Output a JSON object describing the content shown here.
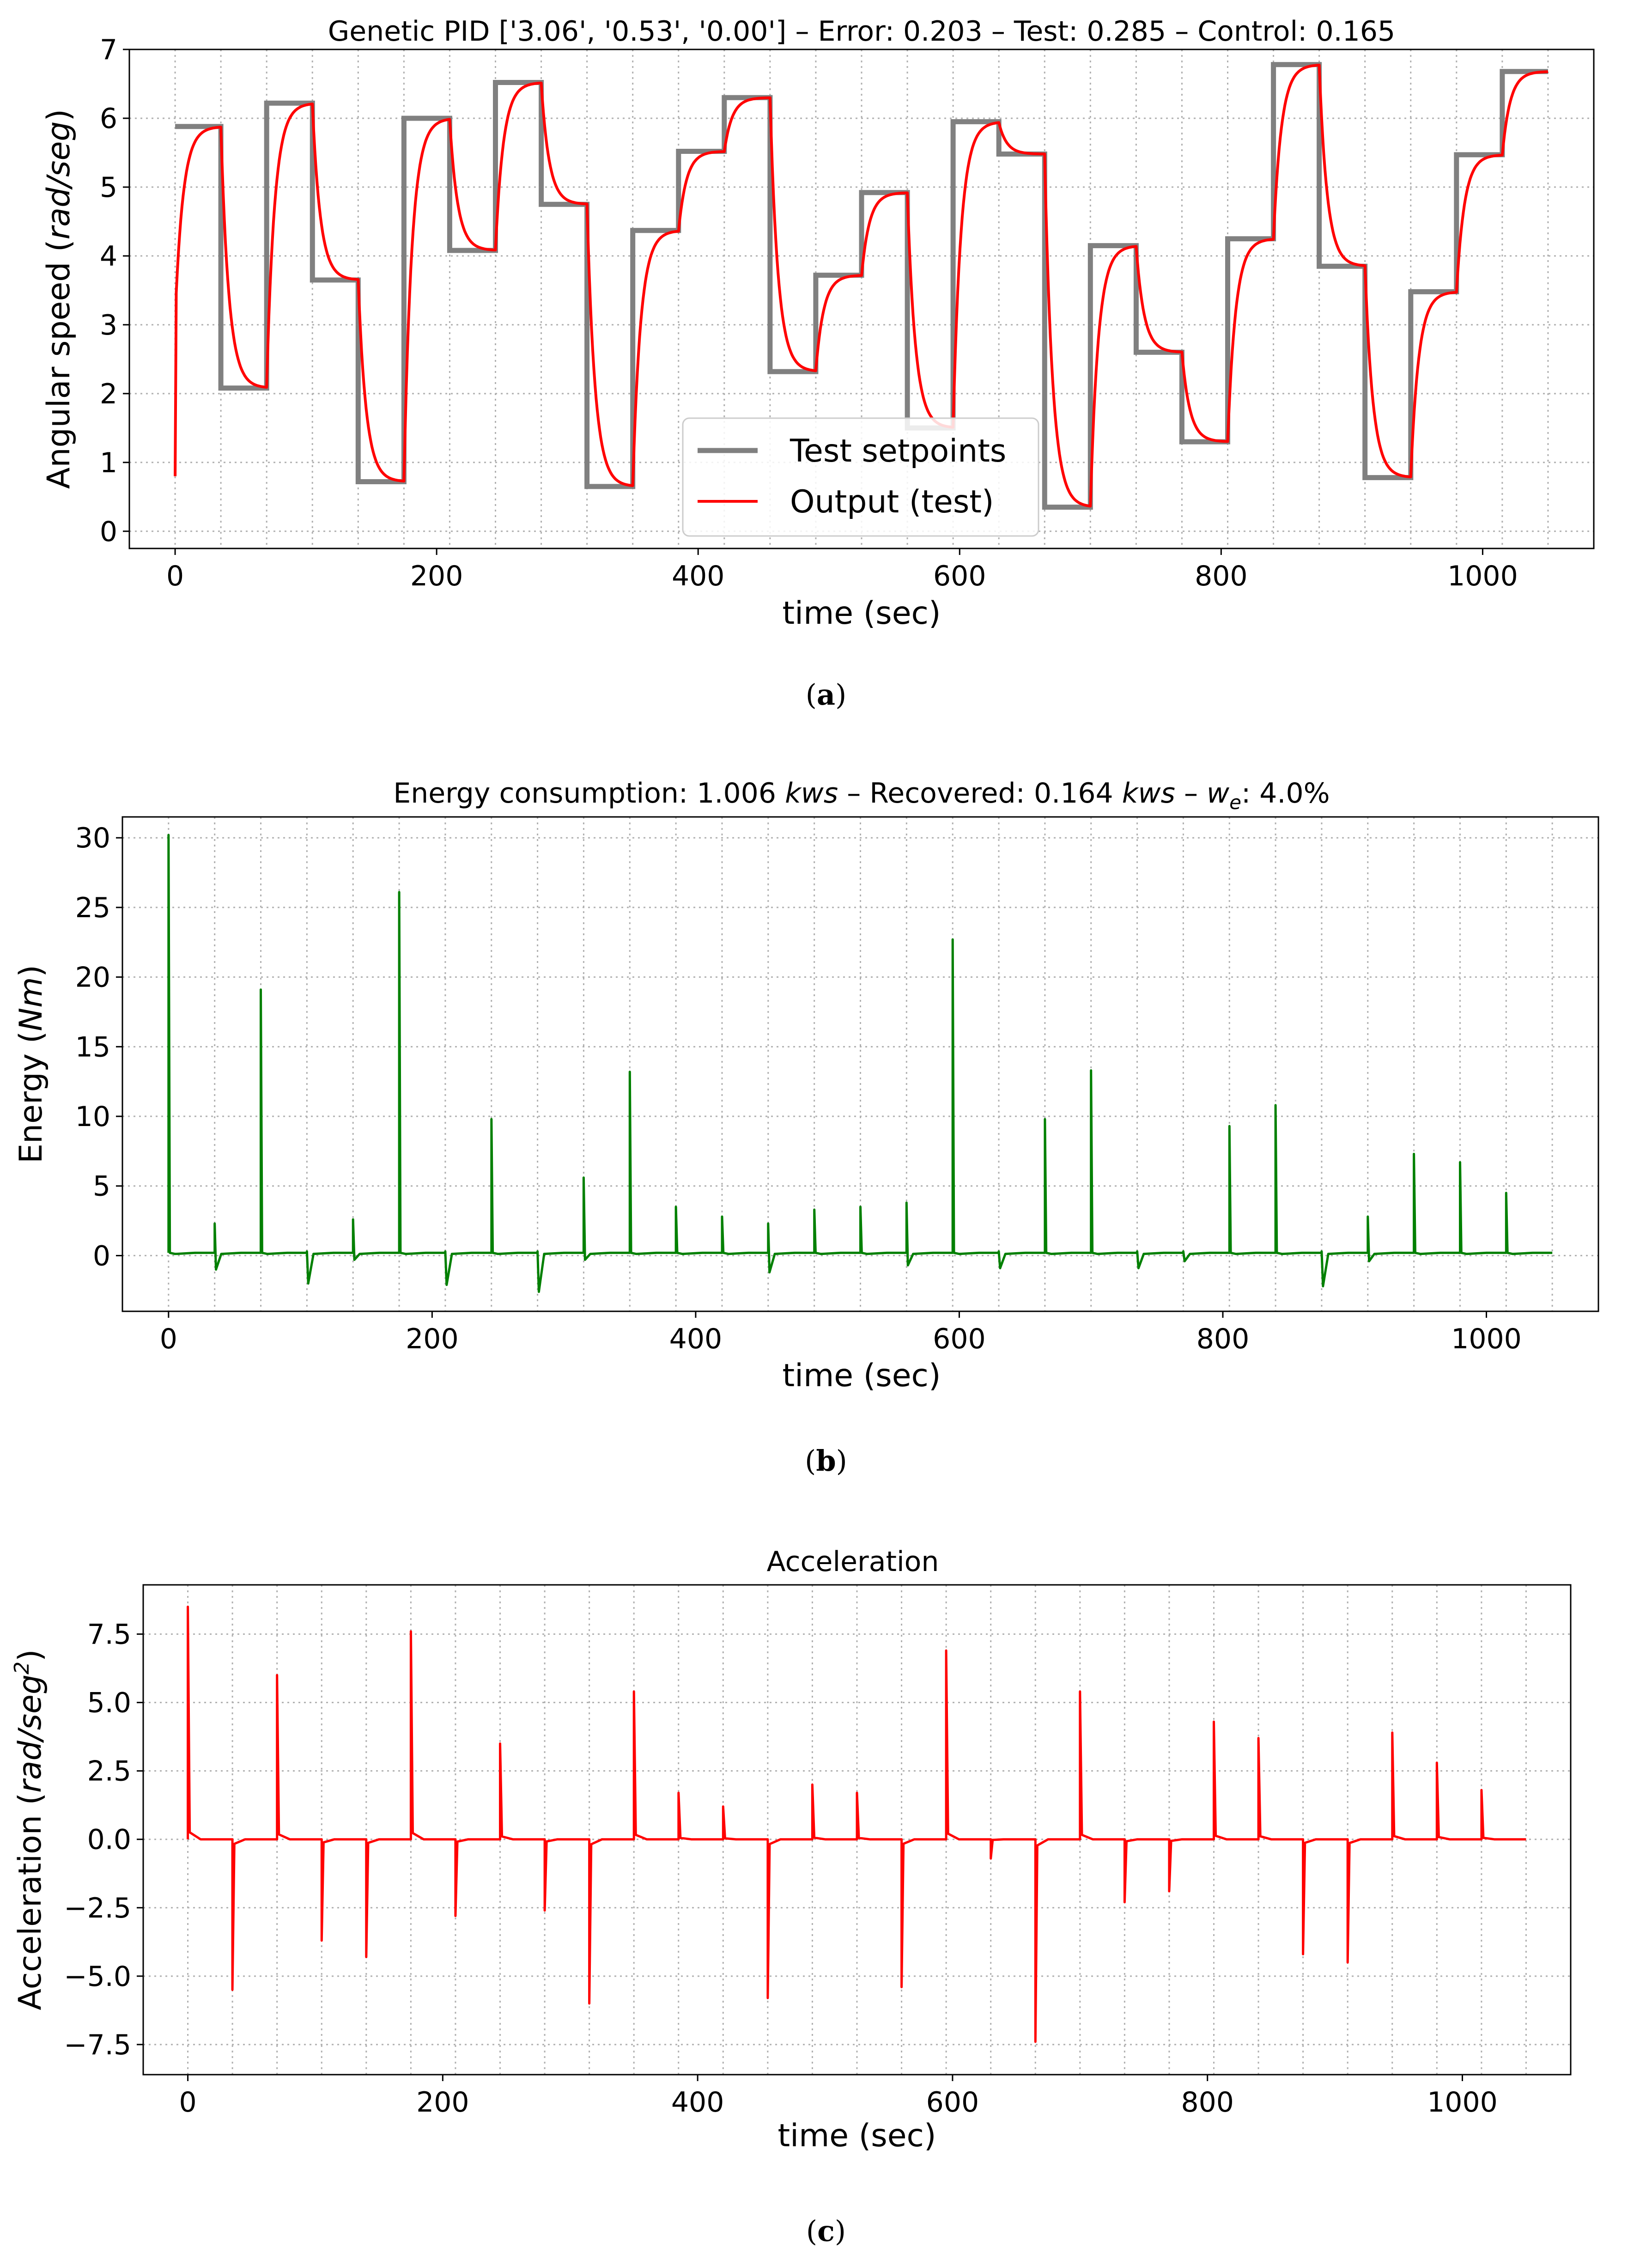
{
  "charts": [
    {
      "id": "a",
      "title": "Genetic PID ['3.06', '0.53', '0.00'] – Error: 0.203 – Test: 0.285 – Control: 0.165",
      "xlabel": "time (sec)",
      "ylabel": {
        "main": "Angular speed (",
        "italic": "rad/seg",
        "end": ")"
      },
      "caption": {
        "open": "(",
        "letter": "a",
        "close": ")"
      },
      "legend": [
        "Test setpoints",
        "Output (test)"
      ]
    },
    {
      "id": "b",
      "title": {
        "t1": "Energy consumption: 1.006 ",
        "i1": "kws",
        "t2": " – Recovered: 0.164 ",
        "i2": "kws",
        "t3": " – ",
        "i3": "w",
        "sub": "e",
        "t4": ": 4.0%"
      },
      "xlabel": "time (sec)",
      "ylabel": {
        "main": "Energy (",
        "italic": "Nm",
        "end": ")"
      },
      "caption": {
        "open": "(",
        "letter": "b",
        "close": ")"
      }
    },
    {
      "id": "c",
      "title": "Acceleration",
      "xlabel": "time (sec)",
      "ylabel": {
        "main": "Acceleration (",
        "italic": "rad/seg",
        "sup": "2",
        "end": ")"
      },
      "caption": {
        "open": "(",
        "letter": "c",
        "close": ")"
      }
    }
  ],
  "colors": {
    "setpoint": "#808080",
    "output": "#ff0000",
    "energy": "#008000",
    "acceleration": "#ff0000",
    "grid": "#b0b0b0"
  },
  "chart_data": [
    {
      "type": "line",
      "title": "Genetic PID ['3.06', '0.53', '0.00'] – Error: 0.203 – Test: 0.285 – Control: 0.165",
      "xlabel": "time (sec)",
      "ylabel": "Angular speed (rad/seg)",
      "xlim": [
        -35,
        1085
      ],
      "ylim": [
        -0.25,
        7.0
      ],
      "xticks": [
        0,
        200,
        400,
        600,
        800,
        1000
      ],
      "yticks": [
        0,
        1,
        2,
        3,
        4,
        5,
        6,
        7
      ],
      "step_duration": 35,
      "initial_output": 0.8,
      "tau": 6,
      "legend_position": "lower center",
      "series": [
        {
          "name": "Test setpoints",
          "kind": "step",
          "values": [
            5.88,
            2.08,
            6.22,
            3.65,
            0.72,
            6.0,
            4.08,
            6.52,
            4.75,
            0.65,
            4.37,
            5.52,
            6.3,
            2.32,
            3.72,
            4.92,
            1.5,
            5.95,
            5.48,
            0.35,
            4.15,
            2.6,
            1.3,
            4.25,
            6.78,
            3.85,
            0.78,
            3.48,
            5.47,
            6.68
          ]
        },
        {
          "name": "Output (test)",
          "kind": "response"
        }
      ]
    },
    {
      "type": "line",
      "title": "Energy consumption: 1.006 kws – Recovered: 0.164 kws – w_e: 4.0%",
      "xlabel": "time (sec)",
      "ylabel": "Energy (Nm)",
      "xlim": [
        -35,
        1085
      ],
      "ylim": [
        -4,
        31.5
      ],
      "xticks": [
        0,
        200,
        400,
        600,
        800,
        1000
      ],
      "yticks": [
        0,
        5,
        10,
        15,
        20,
        25,
        30
      ],
      "baseline": 0.2,
      "series": [
        {
          "name": "Energy",
          "spike_times": [
            0,
            35,
            70,
            105,
            140,
            175,
            210,
            245,
            280,
            315,
            350,
            385,
            420,
            455,
            490,
            525,
            560,
            595,
            630,
            665,
            700,
            735,
            770,
            805,
            840,
            875,
            910,
            945,
            980,
            1015
          ],
          "spike_peaks": [
            30.2,
            2.3,
            19.1,
            0.3,
            2.6,
            26.1,
            0.3,
            9.8,
            0.3,
            5.6,
            13.2,
            3.5,
            2.8,
            2.3,
            3.3,
            3.5,
            3.8,
            22.7,
            0.3,
            9.8,
            13.3,
            0.3,
            0.3,
            9.3,
            10.8,
            0.3,
            2.8,
            7.3,
            6.7,
            4.5
          ],
          "spike_mins": [
            0.0,
            -1.0,
            0.0,
            -2.0,
            -0.3,
            0.0,
            -2.1,
            0.0,
            -2.6,
            -0.3,
            0.0,
            0.0,
            0.0,
            -1.2,
            0.0,
            0.0,
            -0.7,
            0.0,
            -0.9,
            0.0,
            0.0,
            -0.9,
            -0.4,
            0.0,
            0.0,
            -2.2,
            -0.4,
            0.0,
            0.0,
            0.0
          ]
        }
      ]
    },
    {
      "type": "line",
      "title": "Acceleration",
      "xlabel": "time (sec)",
      "ylabel": "Acceleration (rad/seg²)",
      "xlim": [
        -35,
        1085
      ],
      "ylim": [
        -8.6,
        9.3
      ],
      "xticks": [
        0,
        200,
        400,
        600,
        800,
        1000
      ],
      "yticks": [
        -7.5,
        -5.0,
        -2.5,
        0.0,
        2.5,
        5.0,
        7.5
      ],
      "series": [
        {
          "name": "Acceleration",
          "spike_times": [
            0,
            35,
            70,
            105,
            140,
            175,
            210,
            245,
            280,
            315,
            350,
            385,
            420,
            455,
            490,
            525,
            560,
            595,
            630,
            665,
            700,
            735,
            770,
            805,
            840,
            875,
            910,
            945,
            980,
            1015
          ],
          "spike_values": [
            8.5,
            -5.5,
            6.0,
            -3.7,
            -4.3,
            7.6,
            -2.8,
            3.5,
            -2.6,
            -6.0,
            5.4,
            1.7,
            1.2,
            -5.8,
            2.0,
            1.7,
            -5.4,
            6.9,
            -0.7,
            -7.4,
            5.4,
            -2.3,
            -1.9,
            4.3,
            3.7,
            -4.2,
            -4.5,
            3.9,
            2.8,
            1.8
          ]
        }
      ]
    }
  ]
}
